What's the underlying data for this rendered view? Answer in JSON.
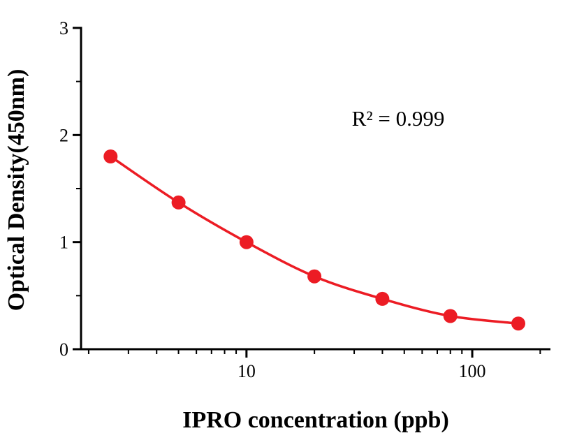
{
  "figure": {
    "background": "#ffffff"
  },
  "chart_data": {
    "type": "line",
    "title": "",
    "xlabel": "IPRO concentration (ppb)",
    "ylabel": "Optical Density(450nm)",
    "annotation": "R² = 0.999",
    "x_scale": "log",
    "x": [
      2.5,
      5,
      10,
      20,
      40,
      80,
      160
    ],
    "y": [
      1.8,
      1.37,
      1.0,
      0.68,
      0.47,
      0.31,
      0.24
    ],
    "xlim": [
      1.85,
      222
    ],
    "ylim": [
      0,
      3
    ],
    "x_major_ticks": [
      10,
      100
    ],
    "x_major_tick_labels": [
      "10",
      "100"
    ],
    "x_minor_ticks": [
      2,
      3,
      4,
      5,
      6,
      7,
      8,
      9,
      20,
      30,
      40,
      50,
      60,
      70,
      80,
      90,
      200
    ],
    "y_major_ticks": [
      0,
      1,
      2,
      3
    ],
    "y_major_tick_labels": [
      "0",
      "1",
      "2",
      "3"
    ],
    "y_minor_ticks": [
      0.5,
      1.5,
      2.5
    ],
    "grid": false,
    "legend": "none",
    "marker": "circle",
    "marker_color": "#ec1c24",
    "line_color": "#ec1c24",
    "axis_color": "#000000"
  }
}
